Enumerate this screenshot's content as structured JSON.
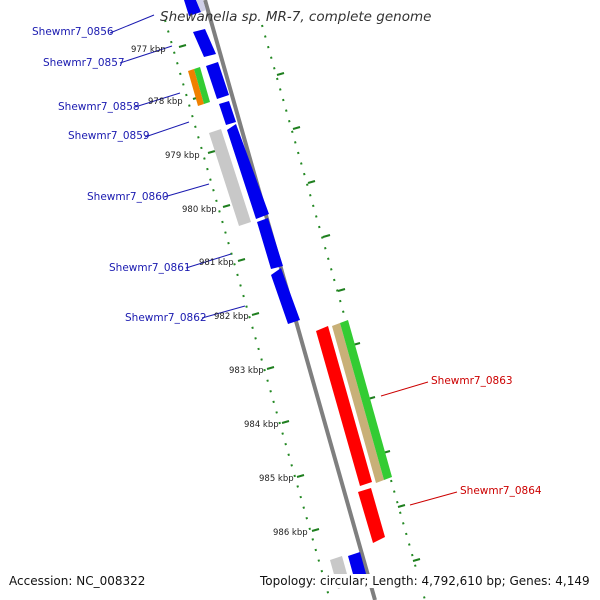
{
  "title": "Shewanella sp. MR-7, complete genome",
  "footer": {
    "accession": "Accession: NC_008322",
    "topology": "Topology: circular; Length: 4,792,610 bp; Genes: 4,149"
  },
  "colors": {
    "blue": "#0000ee",
    "red": "#ff0000",
    "green": "#33cc33",
    "tan": "#c8b078",
    "orange": "#f08000",
    "gray": "#c8c8c8",
    "backbone": "#808080",
    "dots": "#228822",
    "left_label": "#1a1ab0",
    "right_label": "#cc0000"
  },
  "scale_labels": [
    "977 kbp",
    "978 kbp",
    "979 kbp",
    "980 kbp",
    "981 kbp",
    "982 kbp",
    "983 kbp",
    "984 kbp",
    "985 kbp",
    "986 kbp"
  ],
  "left_genes": [
    "Shewmr7_0856",
    "Shewmr7_0857",
    "Shewmr7_0858",
    "Shewmr7_0859",
    "Shewmr7_0860",
    "Shewmr7_0861",
    "Shewmr7_0862"
  ],
  "right_genes": [
    "Shewmr7_0863",
    "Shewmr7_0864"
  ]
}
